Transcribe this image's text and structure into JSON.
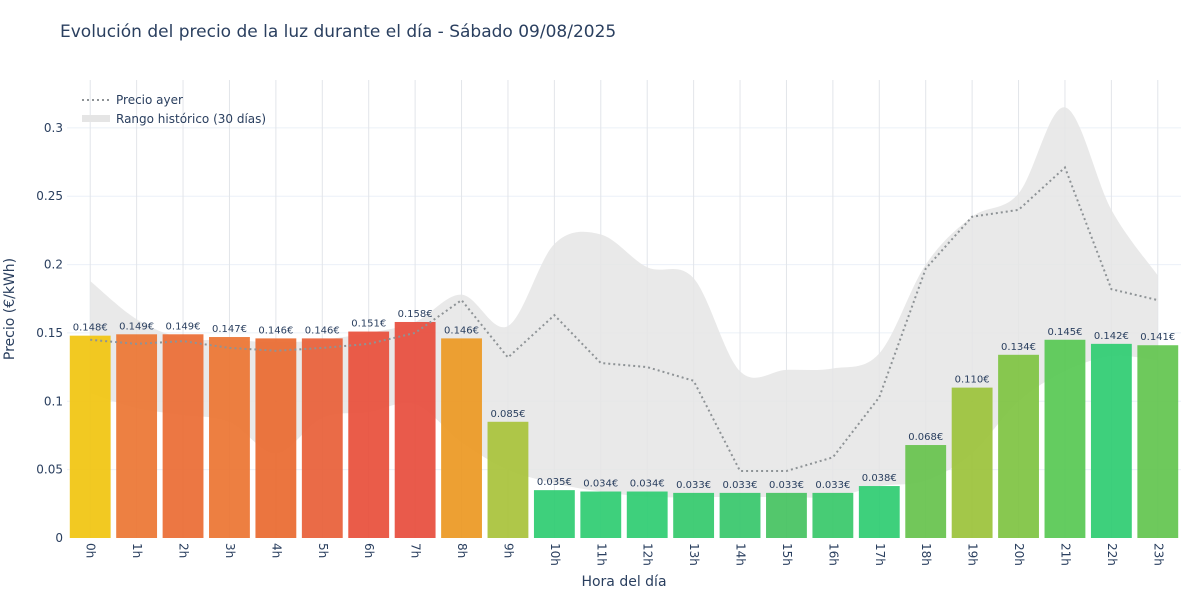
{
  "title": "Evolución del precio de la luz durante el día - Sábado 09/08/2025",
  "chart_data": {
    "type": "bar",
    "title": "Evolución del precio de la luz durante el día - Sábado 09/08/2025",
    "xlabel": "Hora del día",
    "ylabel": "Precio (€/kWh)",
    "ylim": [
      0,
      0.335
    ],
    "yticks": [
      {
        "value": 0,
        "label": "0"
      },
      {
        "value": 0.05,
        "label": "0.05"
      },
      {
        "value": 0.1,
        "label": "0.1"
      },
      {
        "value": 0.15,
        "label": "0.15"
      },
      {
        "value": 0.2,
        "label": "0.2"
      },
      {
        "value": 0.25,
        "label": "0.25"
      },
      {
        "value": 0.3,
        "label": "0.3"
      }
    ],
    "grid": true,
    "legend_position": "top-left",
    "categories": [
      "0h",
      "1h",
      "2h",
      "3h",
      "4h",
      "5h",
      "6h",
      "7h",
      "8h",
      "9h",
      "10h",
      "11h",
      "12h",
      "13h",
      "14h",
      "15h",
      "16h",
      "17h",
      "18h",
      "19h",
      "20h",
      "21h",
      "22h",
      "23h"
    ],
    "series": [
      {
        "kind": "bar",
        "values": [
          0.148,
          0.149,
          0.149,
          0.147,
          0.146,
          0.146,
          0.151,
          0.158,
          0.146,
          0.085,
          0.035,
          0.034,
          0.034,
          0.033,
          0.033,
          0.033,
          0.033,
          0.038,
          0.068,
          0.11,
          0.134,
          0.145,
          0.142,
          0.141
        ],
        "labels": [
          "0.148€",
          "0.149€",
          "0.149€",
          "0.147€",
          "0.146€",
          "0.146€",
          "0.151€",
          "0.158€",
          "0.146€",
          "0.085€",
          "0.035€",
          "0.034€",
          "0.034€",
          "0.033€",
          "0.033€",
          "0.033€",
          "0.033€",
          "0.038€",
          "0.068€",
          "0.110€",
          "0.134€",
          "0.145€",
          "0.142€",
          "0.141€"
        ],
        "colors": [
          "#f1c40f",
          "#ec7532",
          "#ea6b33",
          "#eb7431",
          "#e9692f",
          "#e85e37",
          "#e84e39",
          "#e74c3c",
          "#ec9822",
          "#a8c23a",
          "#2ecc71",
          "#2ecc71",
          "#2ecc71",
          "#33c96b",
          "#36c76a",
          "#44c25f",
          "#37c869",
          "#2ecc71",
          "#66c24c",
          "#9bc23a",
          "#7ec341",
          "#57c853",
          "#2ecc71",
          "#62c44e"
        ]
      },
      {
        "kind": "line",
        "name": "Precio ayer",
        "color": "#8e9396",
        "values": [
          0.145,
          0.142,
          0.144,
          0.139,
          0.137,
          0.139,
          0.142,
          0.15,
          0.174,
          0.132,
          0.163,
          0.128,
          0.125,
          0.115,
          0.049,
          0.049,
          0.059,
          0.103,
          0.197,
          0.235,
          0.24,
          0.271,
          0.182,
          0.174
        ]
      },
      {
        "kind": "range",
        "name": "Rango histórico (30 días)",
        "color": "#e5e5e5",
        "upper": [
          0.188,
          0.16,
          0.146,
          0.145,
          0.143,
          0.145,
          0.15,
          0.158,
          0.178,
          0.155,
          0.215,
          0.222,
          0.198,
          0.19,
          0.122,
          0.123,
          0.124,
          0.135,
          0.2,
          0.235,
          0.252,
          0.315,
          0.24,
          0.192
        ],
        "lower": [
          0.106,
          0.095,
          0.09,
          0.085,
          0.062,
          0.088,
          0.092,
          0.098,
          0.07,
          0.05,
          0.04,
          0.034,
          0.03,
          0.03,
          0.03,
          0.03,
          0.03,
          0.038,
          0.042,
          0.062,
          0.1,
          0.122,
          0.133,
          0.13
        ]
      }
    ]
  }
}
